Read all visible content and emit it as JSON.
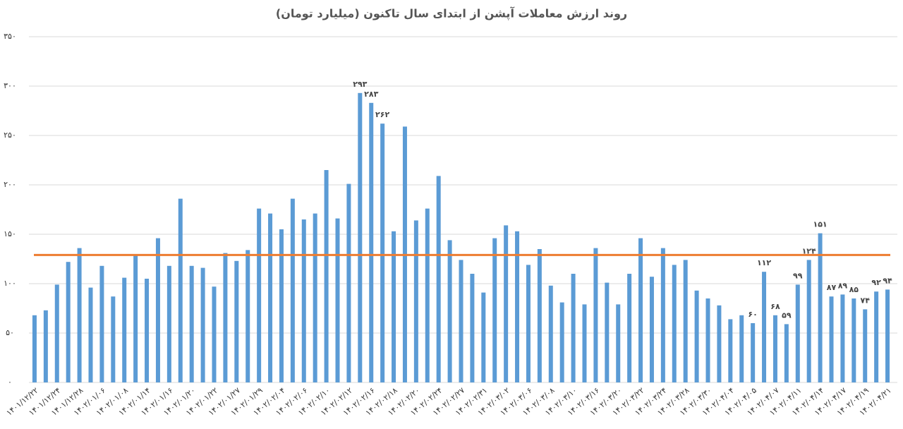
{
  "chart_data": {
    "type": "bar",
    "title": "روند ارزش معاملات آپشن از ابتدای سال تاکنون (میلیارد تومان)",
    "categories": [
      "۱۴۰۱/۱۲/۲۲",
      null,
      "۱۴۰۱/۱۲/۲۴",
      null,
      "۱۴۰۱/۱۲/۲۸",
      null,
      "۱۴۰۲/۰۱/۰۶",
      null,
      "۱۴۰۲/۰۱/۰۸",
      null,
      "۱۴۰۲/۰۱/۱۴",
      null,
      "۱۴۰۲/۰۱/۱۶",
      null,
      "۱۴۰۲/۰۱/۲۰",
      null,
      "۱۴۰۲/۰۱/۲۲",
      null,
      "۱۴۰۲/۰۱/۲۷",
      null,
      "۱۴۰۲/۰۱/۲۹",
      null,
      "۱۴۰۲/۰۲/۰۴",
      null,
      "۱۴۰۲/۰۲/۰۶",
      null,
      "۱۴۰۲/۰۲/۱۰",
      null,
      "۱۴۰۲/۰۲/۱۲",
      null,
      "۱۴۰۲/۰۲/۱۶",
      null,
      "۱۴۰۲/۰۲/۱۸",
      null,
      "۱۴۰۲/۰۲/۲۰",
      null,
      "۱۴۰۲/۰۲/۲۴",
      null,
      "۱۴۰۲/۰۲/۲۷",
      null,
      "۱۴۰۲/۰۲/۳۱",
      null,
      "۱۴۰۲/۰۳/۰۲",
      null,
      "۱۴۰۲/۰۳/۰۶",
      null,
      "۱۴۰۲/۰۳/۰۸",
      null,
      "۱۴۰۲/۰۳/۱۰",
      null,
      "۱۴۰۲/۰۳/۱۶",
      null,
      "۱۴۰۲/۰۳/۲۰",
      null,
      "۱۴۰۲/۰۳/۲۲",
      null,
      "۱۴۰۲/۰۳/۲۴",
      null,
      "۱۴۰۲/۰۳/۲۸",
      null,
      "۱۴۰۲/۰۳/۳۰",
      null,
      "۱۴۰۲/۰۴/۰۴",
      null,
      "۱۴۰۲/۰۴/۰۵",
      null,
      "۱۴۰۲/۰۴/۰۷",
      null,
      "۱۴۰۲/۰۴/۱۱",
      null,
      "۱۴۰۲/۰۴/۱۴",
      null,
      "۱۴۰۲/۰۴/۱۷",
      null,
      "۱۴۰۲/۰۴/۱۹",
      null,
      "۱۴۰۲/۰۴/۲۱"
    ],
    "values": [
      68,
      73,
      99,
      122,
      136,
      96,
      118,
      87,
      106,
      130,
      105,
      146,
      118,
      186,
      118,
      116,
      97,
      131,
      123,
      134,
      176,
      171,
      155,
      186,
      165,
      171,
      215,
      166,
      201,
      293,
      283,
      262,
      153,
      259,
      164,
      176,
      209,
      144,
      124,
      110,
      91,
      146,
      159,
      153,
      119,
      135,
      98,
      81,
      110,
      79,
      136,
      101,
      79,
      110,
      146,
      107,
      136,
      119,
      124,
      93,
      85,
      78,
      64,
      68,
      60,
      112,
      68,
      59,
      99,
      124,
      151,
      87,
      89,
      85,
      74,
      92,
      94
    ],
    "value_labels": [
      null,
      null,
      null,
      null,
      null,
      null,
      null,
      null,
      null,
      null,
      null,
      null,
      null,
      null,
      null,
      null,
      null,
      null,
      null,
      null,
      null,
      null,
      null,
      null,
      null,
      null,
      null,
      null,
      null,
      "۲۹۳",
      "۲۸۳",
      "۲۶۲",
      null,
      null,
      null,
      null,
      null,
      null,
      null,
      null,
      null,
      null,
      null,
      null,
      null,
      null,
      null,
      null,
      null,
      null,
      null,
      null,
      null,
      null,
      null,
      null,
      null,
      null,
      null,
      null,
      null,
      null,
      null,
      null,
      "۶۰",
      "۱۱۲",
      "۶۸",
      "۵۹",
      "۹۹",
      "۱۲۴",
      "۱۵۱",
      "۸۷",
      "۸۹",
      "۸۵",
      "۷۴",
      "۹۲",
      "۹۴"
    ],
    "color": "#5b9bd5",
    "reference_line": {
      "value": 129,
      "color": "#ed7d31"
    },
    "ylim": [
      0,
      350
    ],
    "yticks": [
      {
        "value": 0,
        "label": "۰"
      },
      {
        "value": 50,
        "label": "۵۰"
      },
      {
        "value": 100,
        "label": "۱۰۰"
      },
      {
        "value": 150,
        "label": "۱۵۰"
      },
      {
        "value": 200,
        "label": "۲۰۰"
      },
      {
        "value": 250,
        "label": "۲۵۰"
      },
      {
        "value": 300,
        "label": "۳۰۰"
      },
      {
        "value": 350,
        "label": "۳۵۰"
      }
    ],
    "grid": true
  }
}
